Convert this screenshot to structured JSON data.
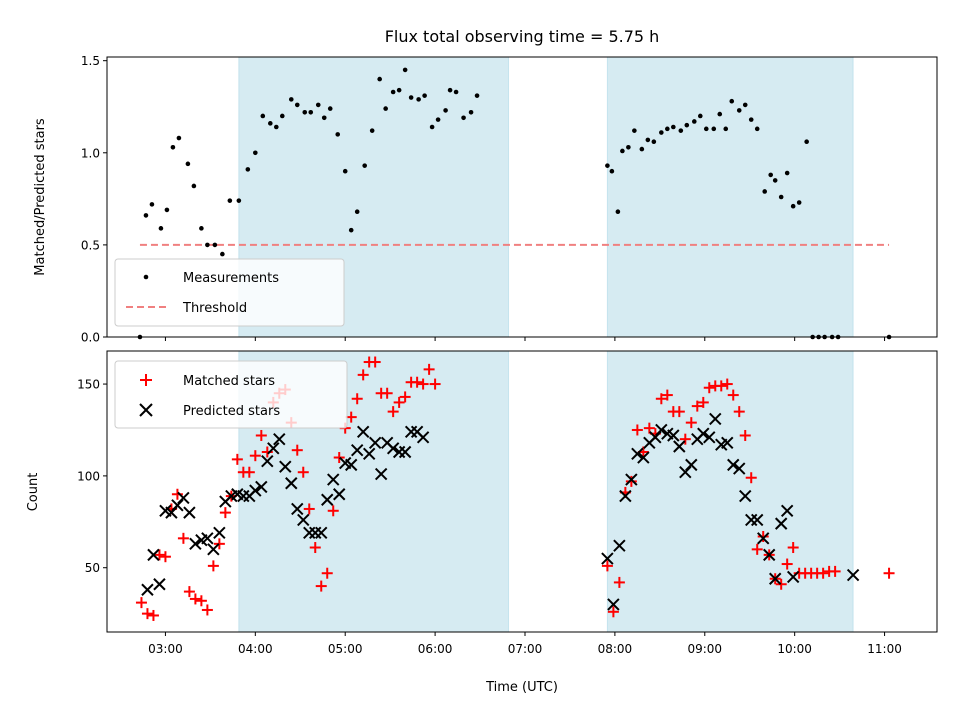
{
  "chart_data": [
    {
      "type": "scatter",
      "title": "Flux total observing time = 5.75 h",
      "xlabel": "",
      "ylabel": "Matched/Predicted stars",
      "xlim": [
        "02:21",
        "11:35"
      ],
      "ylim": [
        0,
        1.52
      ],
      "y_ticks": [
        "0.0",
        "0.5",
        "1.0",
        "1.5"
      ],
      "legend_position": "lower-left",
      "observing_windows": [
        [
          "03:49",
          "06:49"
        ],
        [
          "07:55",
          "10:39"
        ]
      ],
      "threshold": {
        "name": "Threshold",
        "y": 0.5,
        "x_range": [
          "02:43",
          "11:03"
        ],
        "color": "#f08080"
      },
      "series": [
        {
          "name": "Measurements",
          "color": "#000000",
          "points": [
            [
              "02:43",
              0.0
            ],
            [
              "02:47",
              0.66
            ],
            [
              "02:51",
              0.72
            ],
            [
              "02:57",
              0.59
            ],
            [
              "03:01",
              0.69
            ],
            [
              "03:05",
              1.03
            ],
            [
              "03:09",
              1.08
            ],
            [
              "03:15",
              0.94
            ],
            [
              "03:19",
              0.82
            ],
            [
              "03:24",
              0.59
            ],
            [
              "03:28",
              0.5
            ],
            [
              "03:33",
              0.5
            ],
            [
              "03:38",
              0.45
            ],
            [
              "03:43",
              0.74
            ],
            [
              "03:49",
              0.74
            ],
            [
              "03:55",
              0.91
            ],
            [
              "04:00",
              1.0
            ],
            [
              "04:05",
              1.2
            ],
            [
              "04:10",
              1.16
            ],
            [
              "04:14",
              1.14
            ],
            [
              "04:18",
              1.2
            ],
            [
              "04:24",
              1.29
            ],
            [
              "04:28",
              1.26
            ],
            [
              "04:33",
              1.22
            ],
            [
              "04:37",
              1.22
            ],
            [
              "04:42",
              1.26
            ],
            [
              "04:46",
              1.19
            ],
            [
              "04:50",
              1.24
            ],
            [
              "04:55",
              1.1
            ],
            [
              "05:00",
              0.9
            ],
            [
              "05:04",
              0.58
            ],
            [
              "05:08",
              0.68
            ],
            [
              "05:13",
              0.93
            ],
            [
              "05:18",
              1.12
            ],
            [
              "05:23",
              1.4
            ],
            [
              "05:27",
              1.24
            ],
            [
              "05:32",
              1.33
            ],
            [
              "05:36",
              1.34
            ],
            [
              "05:40",
              1.45
            ],
            [
              "05:44",
              1.3
            ],
            [
              "05:49",
              1.29
            ],
            [
              "05:53",
              1.31
            ],
            [
              "05:58",
              1.14
            ],
            [
              "06:02",
              1.18
            ],
            [
              "06:07",
              1.23
            ],
            [
              "06:10",
              1.34
            ],
            [
              "06:14",
              1.33
            ],
            [
              "06:19",
              1.19
            ],
            [
              "06:24",
              1.22
            ],
            [
              "06:28",
              1.31
            ],
            [
              "07:55",
              0.93
            ],
            [
              "07:58",
              0.9
            ],
            [
              "08:02",
              0.68
            ],
            [
              "08:05",
              1.01
            ],
            [
              "08:09",
              1.03
            ],
            [
              "08:13",
              1.12
            ],
            [
              "08:18",
              1.02
            ],
            [
              "08:22",
              1.07
            ],
            [
              "08:26",
              1.06
            ],
            [
              "08:31",
              1.11
            ],
            [
              "08:35",
              1.13
            ],
            [
              "08:39",
              1.14
            ],
            [
              "08:44",
              1.12
            ],
            [
              "08:48",
              1.15
            ],
            [
              "08:53",
              1.17
            ],
            [
              "08:57",
              1.2
            ],
            [
              "09:01",
              1.13
            ],
            [
              "09:06",
              1.13
            ],
            [
              "09:10",
              1.21
            ],
            [
              "09:14",
              1.13
            ],
            [
              "09:18",
              1.28
            ],
            [
              "09:23",
              1.23
            ],
            [
              "09:27",
              1.26
            ],
            [
              "09:31",
              1.18
            ],
            [
              "09:35",
              1.13
            ],
            [
              "09:40",
              0.79
            ],
            [
              "09:44",
              0.88
            ],
            [
              "09:47",
              0.85
            ],
            [
              "09:51",
              0.76
            ],
            [
              "09:55",
              0.89
            ],
            [
              "09:59",
              0.71
            ],
            [
              "10:03",
              0.73
            ],
            [
              "10:08",
              1.06
            ],
            [
              "10:12",
              0.0
            ],
            [
              "10:16",
              0.0
            ],
            [
              "10:20",
              0.0
            ],
            [
              "10:25",
              0.0
            ],
            [
              "10:29",
              0.0
            ],
            [
              "11:03",
              0.0
            ]
          ]
        }
      ]
    },
    {
      "type": "scatter",
      "title": "",
      "xlabel": "Time (UTC)",
      "ylabel": "Count",
      "xlim": [
        "02:21",
        "11:35"
      ],
      "ylim": [
        15,
        168
      ],
      "x_ticks": [
        "03:00",
        "04:00",
        "05:00",
        "06:00",
        "07:00",
        "08:00",
        "09:00",
        "10:00",
        "11:00"
      ],
      "y_ticks": [
        "50",
        "100",
        "150"
      ],
      "legend_position": "upper-left",
      "observing_windows": [
        [
          "03:49",
          "06:49"
        ],
        [
          "07:55",
          "10:39"
        ]
      ],
      "series": [
        {
          "name": "Matched stars",
          "marker": "+",
          "color": "#ff0000",
          "points": [
            [
              "02:44",
              31
            ],
            [
              "02:48",
              25
            ],
            [
              "02:52",
              24
            ],
            [
              "02:56",
              57
            ],
            [
              "03:00",
              56
            ],
            [
              "03:04",
              82
            ],
            [
              "03:08",
              90
            ],
            [
              "03:12",
              66
            ],
            [
              "03:16",
              37
            ],
            [
              "03:20",
              33
            ],
            [
              "03:24",
              32
            ],
            [
              "03:28",
              27
            ],
            [
              "03:32",
              51
            ],
            [
              "03:36",
              63
            ],
            [
              "03:40",
              80
            ],
            [
              "03:44",
              89
            ],
            [
              "03:48",
              109
            ],
            [
              "03:52",
              102
            ],
            [
              "03:56",
              102
            ],
            [
              "04:00",
              111
            ],
            [
              "04:04",
              122
            ],
            [
              "04:08",
              113
            ],
            [
              "04:12",
              140
            ],
            [
              "04:16",
              145
            ],
            [
              "04:20",
              147
            ],
            [
              "04:24",
              129
            ],
            [
              "04:28",
              114
            ],
            [
              "04:32",
              102
            ],
            [
              "04:36",
              82
            ],
            [
              "04:40",
              61
            ],
            [
              "04:44",
              40
            ],
            [
              "04:48",
              47
            ],
            [
              "04:52",
              81
            ],
            [
              "04:56",
              110
            ],
            [
              "05:00",
              126
            ],
            [
              "05:04",
              132
            ],
            [
              "05:08",
              142
            ],
            [
              "05:12",
              155
            ],
            [
              "05:16",
              162
            ],
            [
              "05:20",
              162
            ],
            [
              "05:24",
              145
            ],
            [
              "05:28",
              145
            ],
            [
              "05:32",
              135
            ],
            [
              "05:36",
              140
            ],
            [
              "05:40",
              143
            ],
            [
              "05:44",
              151
            ],
            [
              "05:48",
              151
            ],
            [
              "05:52",
              150
            ],
            [
              "05:56",
              158
            ],
            [
              "06:00",
              150
            ],
            [
              "07:55",
              51
            ],
            [
              "07:59",
              26
            ],
            [
              "08:03",
              42
            ],
            [
              "08:07",
              91
            ],
            [
              "08:11",
              97
            ],
            [
              "08:15",
              125
            ],
            [
              "08:19",
              113
            ],
            [
              "08:23",
              126
            ],
            [
              "08:27",
              123
            ],
            [
              "08:31",
              142
            ],
            [
              "08:35",
              144
            ],
            [
              "08:39",
              135
            ],
            [
              "08:43",
              135
            ],
            [
              "08:47",
              120
            ],
            [
              "08:51",
              129
            ],
            [
              "08:55",
              138
            ],
            [
              "08:59",
              140
            ],
            [
              "09:03",
              148
            ],
            [
              "09:07",
              149
            ],
            [
              "09:11",
              149
            ],
            [
              "09:15",
              150
            ],
            [
              "09:19",
              144
            ],
            [
              "09:23",
              135
            ],
            [
              "09:27",
              122
            ],
            [
              "09:31",
              99
            ],
            [
              "09:35",
              60
            ],
            [
              "09:39",
              67
            ],
            [
              "09:43",
              57
            ],
            [
              "09:47",
              44
            ],
            [
              "09:51",
              41
            ],
            [
              "09:55",
              52
            ],
            [
              "09:59",
              61
            ],
            [
              "10:03",
              47
            ],
            [
              "10:07",
              47
            ],
            [
              "10:11",
              47
            ],
            [
              "10:15",
              47
            ],
            [
              "10:19",
              47
            ],
            [
              "10:23",
              48
            ],
            [
              "10:27",
              48
            ],
            [
              "11:03",
              47
            ]
          ]
        },
        {
          "name": "Predicted stars",
          "marker": "x",
          "color": "#000000",
          "points": [
            [
              "02:48",
              38
            ],
            [
              "02:52",
              57
            ],
            [
              "02:56",
              41
            ],
            [
              "03:00",
              81
            ],
            [
              "03:04",
              80
            ],
            [
              "03:08",
              84
            ],
            [
              "03:12",
              88
            ],
            [
              "03:16",
              80
            ],
            [
              "03:20",
              63
            ],
            [
              "03:24",
              65
            ],
            [
              "03:28",
              66
            ],
            [
              "03:32",
              60
            ],
            [
              "03:36",
              69
            ],
            [
              "03:40",
              86
            ],
            [
              "03:44",
              89
            ],
            [
              "03:48",
              90
            ],
            [
              "03:52",
              89
            ],
            [
              "03:56",
              89
            ],
            [
              "04:00",
              92
            ],
            [
              "04:04",
              94
            ],
            [
              "04:08",
              108
            ],
            [
              "04:12",
              115
            ],
            [
              "04:16",
              120
            ],
            [
              "04:20",
              105
            ],
            [
              "04:24",
              96
            ],
            [
              "04:28",
              82
            ],
            [
              "04:32",
              76
            ],
            [
              "04:36",
              69
            ],
            [
              "04:40",
              69
            ],
            [
              "04:44",
              69
            ],
            [
              "04:48",
              87
            ],
            [
              "04:52",
              98
            ],
            [
              "04:56",
              90
            ],
            [
              "05:00",
              107
            ],
            [
              "05:04",
              106
            ],
            [
              "05:08",
              114
            ],
            [
              "05:12",
              124
            ],
            [
              "05:16",
              112
            ],
            [
              "05:20",
              118
            ],
            [
              "05:24",
              101
            ],
            [
              "05:28",
              118
            ],
            [
              "05:32",
              115
            ],
            [
              "05:36",
              113
            ],
            [
              "05:40",
              113
            ],
            [
              "05:44",
              124
            ],
            [
              "05:48",
              124
            ],
            [
              "05:52",
              121
            ],
            [
              "07:55",
              55
            ],
            [
              "07:59",
              30
            ],
            [
              "08:03",
              62
            ],
            [
              "08:07",
              89
            ],
            [
              "08:11",
              98
            ],
            [
              "08:15",
              112
            ],
            [
              "08:19",
              110
            ],
            [
              "08:23",
              118
            ],
            [
              "08:27",
              121
            ],
            [
              "08:31",
              125
            ],
            [
              "08:35",
              123
            ],
            [
              "08:39",
              122
            ],
            [
              "08:43",
              116
            ],
            [
              "08:47",
              102
            ],
            [
              "08:51",
              106
            ],
            [
              "08:55",
              120
            ],
            [
              "08:59",
              123
            ],
            [
              "09:03",
              121
            ],
            [
              "09:07",
              131
            ],
            [
              "09:11",
              117
            ],
            [
              "09:15",
              118
            ],
            [
              "09:19",
              106
            ],
            [
              "09:23",
              104
            ],
            [
              "09:27",
              89
            ],
            [
              "09:31",
              76
            ],
            [
              "09:35",
              76
            ],
            [
              "09:39",
              66
            ],
            [
              "09:43",
              57
            ],
            [
              "09:47",
              44
            ],
            [
              "09:51",
              74
            ],
            [
              "09:55",
              81
            ],
            [
              "09:59",
              45
            ],
            [
              "10:39",
              46
            ]
          ]
        }
      ]
    }
  ]
}
